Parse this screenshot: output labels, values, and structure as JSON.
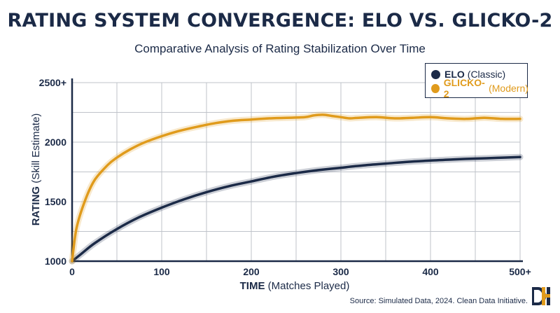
{
  "chart_data": {
    "type": "line",
    "title": "RATING SYSTEM CONVERGENCE: ELO VS. GLICKO-2",
    "subtitle": "Comparative Analysis of Rating Stabilization Over Time",
    "xlabel_bold": "TIME",
    "xlabel_rest": "(Matches Played)",
    "ylabel_bold": "RATING",
    "ylabel_rest": "(Skill Estimate)",
    "xlim": [
      0,
      500
    ],
    "ylim": [
      1000,
      2500
    ],
    "x_ticks": [
      {
        "value": 0,
        "label": "0"
      },
      {
        "value": 100,
        "label": "100"
      },
      {
        "value": 200,
        "label": "200"
      },
      {
        "value": 300,
        "label": "300"
      },
      {
        "value": 400,
        "label": "400"
      },
      {
        "value": 500,
        "label": "500+"
      }
    ],
    "y_ticks": [
      {
        "value": 1000,
        "label": "1000"
      },
      {
        "value": 1500,
        "label": "1500"
      },
      {
        "value": 2000,
        "label": "2000"
      },
      {
        "value": 2500,
        "label": "2500+"
      }
    ],
    "grid": true,
    "legend_position": "top-right",
    "series": [
      {
        "name": "ELO",
        "qualifier": "(Classic)",
        "color": "#1b2a47",
        "x": [
          0,
          10,
          25,
          50,
          75,
          100,
          125,
          150,
          175,
          200,
          225,
          250,
          275,
          300,
          325,
          350,
          375,
          400,
          425,
          450,
          475,
          500
        ],
        "y": [
          1000,
          1060,
          1150,
          1270,
          1370,
          1450,
          1520,
          1580,
          1630,
          1670,
          1710,
          1740,
          1765,
          1785,
          1805,
          1820,
          1835,
          1845,
          1855,
          1862,
          1868,
          1875
        ]
      },
      {
        "name": "GLICKO-2",
        "qualifier": "(Modern)",
        "color": "#e09b1c",
        "x": [
          0,
          5,
          15,
          25,
          40,
          50,
          65,
          80,
          100,
          120,
          140,
          160,
          180,
          200,
          220,
          240,
          260,
          270,
          280,
          290,
          300,
          310,
          320,
          340,
          360,
          380,
          400,
          420,
          440,
          460,
          480,
          500
        ],
        "y": [
          1000,
          1280,
          1520,
          1680,
          1810,
          1870,
          1940,
          1995,
          2050,
          2095,
          2130,
          2160,
          2180,
          2190,
          2200,
          2205,
          2210,
          2225,
          2230,
          2220,
          2210,
          2200,
          2205,
          2210,
          2200,
          2205,
          2210,
          2200,
          2195,
          2205,
          2195,
          2195
        ]
      }
    ]
  },
  "footer": {
    "source": "Source: Simulated Data, 2024. Clean Data Initiative."
  }
}
